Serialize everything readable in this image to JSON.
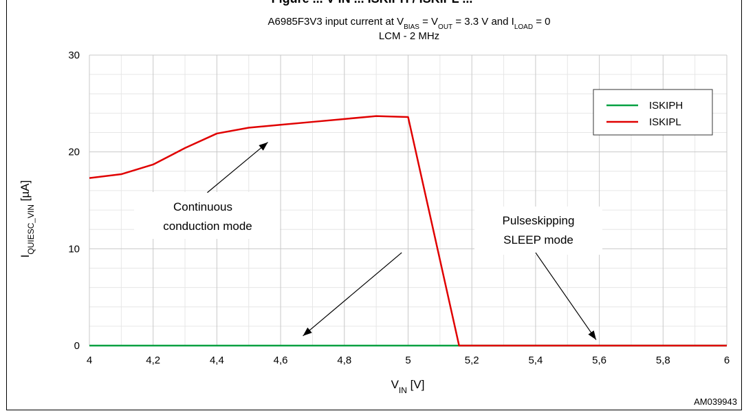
{
  "chart_data": {
    "type": "line",
    "title_line1_parts": [
      "A6985F3V3 input current at V",
      "BIAS",
      " = V",
      "OUT",
      " = 3.3 V and  I",
      "LOAD",
      " = 0"
    ],
    "title_line2": "LCM - 2 MHz",
    "cut_heading": "Figure ... V IN ... ISKIPH / ISKIPL ...",
    "xlabel_main": "V",
    "xlabel_sub": "IN",
    "xlabel_unit": " [V]",
    "ylabel_main": "I",
    "ylabel_sub": "QUIESC_VIN",
    "ylabel_unit": " [µA]",
    "xlim": [
      4,
      6
    ],
    "ylim": [
      0,
      30
    ],
    "x_ticks": [
      4,
      4.2,
      4.4,
      4.6,
      4.8,
      5,
      5.2,
      5.4,
      5.6,
      5.8,
      6
    ],
    "x_tick_labels": [
      "4",
      "4,2",
      "4,4",
      "4,6",
      "4,8",
      "5",
      "5,2",
      "5,4",
      "5,6",
      "5,8",
      "6"
    ],
    "y_ticks": [
      0,
      10,
      20,
      30
    ],
    "y_tick_labels": [
      "0",
      "10",
      "20",
      "30"
    ],
    "grid": true,
    "legend_position": "top-right",
    "series": [
      {
        "name": "ISKIPH",
        "color": "#00a040",
        "x": [
          4,
          4.2,
          4.4,
          4.6,
          4.8,
          5,
          5.16,
          5.2,
          5.4,
          5.6,
          5.8,
          6
        ],
        "y": [
          0,
          0,
          0,
          0,
          0,
          0,
          0,
          0,
          0,
          0,
          0,
          0
        ]
      },
      {
        "name": "ISKIPL",
        "color": "#e00000",
        "x": [
          4,
          4.1,
          4.2,
          4.3,
          4.4,
          4.5,
          4.6,
          4.7,
          4.8,
          4.9,
          5,
          5.16,
          5.2,
          5.4,
          5.6,
          5.8,
          6
        ],
        "y": [
          17.3,
          17.7,
          18.7,
          20.4,
          21.9,
          22.5,
          22.8,
          23.1,
          23.4,
          23.7,
          23.6,
          0,
          0,
          0,
          0,
          0,
          0
        ]
      }
    ],
    "annotations": {
      "ccm_line1": "Continuous",
      "ccm_line2": "conduction mode",
      "ps_line1": "Pulseskipping",
      "ps_line2": "SLEEP mode",
      "ccm_arrow": {
        "from": [
          4.37,
          15.8
        ],
        "to": [
          4.56,
          21.0
        ]
      },
      "ps_arrow_left": {
        "from": [
          4.98,
          9.6
        ],
        "to": [
          4.67,
          1.0
        ]
      },
      "ps_arrow_right": {
        "from": [
          5.4,
          9.6
        ],
        "to": [
          5.59,
          0.6
        ]
      }
    },
    "figure_id": "AM039943"
  }
}
